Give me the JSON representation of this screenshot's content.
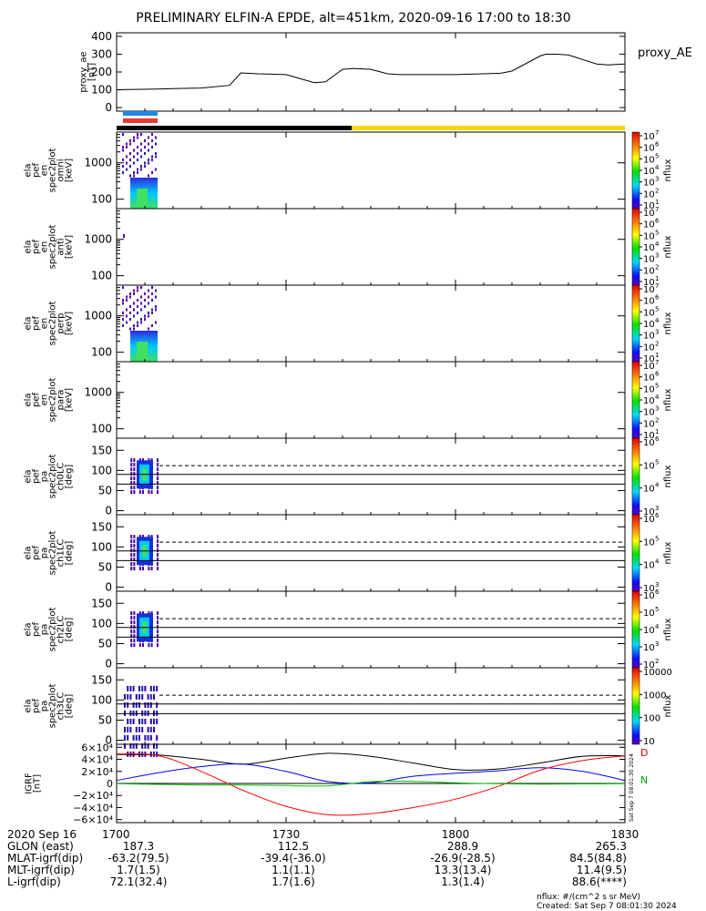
{
  "title": "PRELIMINARY ELFIN-A EPDE, alt=451km, 2020-09-16 17:00 to 18:30",
  "colors": {
    "bar_blue": "#1e88e5",
    "bar_red": "#e53935",
    "bar_black": "#000000",
    "bar_yellow": "#f5d90a",
    "ae_line": "#000000",
    "igrf_x": "#000000",
    "igrf_y": "#0000ff",
    "igrf_z": "#ff0000",
    "igrf_t": "#00c000"
  },
  "top_panel": {
    "ylabel_lines": [
      "proxy_ae",
      "[nT]"
    ],
    "legend": "proxy_AE",
    "yticks": [
      "0",
      "100",
      "200",
      "300",
      "400"
    ]
  },
  "spec_panels": [
    {
      "ylabel_lines": [
        "ela",
        "pef",
        "en",
        "spec2plot",
        "omni",
        "[keV]"
      ],
      "yticks": [
        "100",
        "1000"
      ],
      "cbar_ticks": [
        "10",
        "10",
        "10",
        "10",
        "10",
        "10",
        "10"
      ],
      "cbar_exps": [
        "1",
        "2",
        "3",
        "4",
        "5",
        "6",
        "7"
      ],
      "cbar_label": "nflux"
    },
    {
      "ylabel_lines": [
        "ela",
        "pef",
        "en",
        "spec2plot",
        "anti",
        "[keV]"
      ],
      "yticks": [
        "100",
        "1000"
      ],
      "cbar_ticks": [
        "10",
        "10",
        "10",
        "10",
        "10",
        "10",
        "10"
      ],
      "cbar_exps": [
        "1",
        "2",
        "3",
        "4",
        "5",
        "6",
        "7"
      ],
      "cbar_label": "nflux"
    },
    {
      "ylabel_lines": [
        "ela",
        "pef",
        "en",
        "spec2plot",
        "perp",
        "[keV]"
      ],
      "yticks": [
        "100",
        "1000"
      ],
      "cbar_ticks": [
        "10",
        "10",
        "10",
        "10",
        "10",
        "10",
        "10"
      ],
      "cbar_exps": [
        "1",
        "2",
        "3",
        "4",
        "5",
        "6",
        "7"
      ],
      "cbar_label": "nflux"
    },
    {
      "ylabel_lines": [
        "ela",
        "pef",
        "en",
        "spec2plot",
        "para",
        "[keV]"
      ],
      "yticks": [
        "100",
        "1000"
      ],
      "cbar_ticks": [
        "10",
        "10",
        "10",
        "10",
        "10",
        "10",
        "10"
      ],
      "cbar_exps": [
        "1",
        "2",
        "3",
        "4",
        "5",
        "6",
        "7"
      ],
      "cbar_label": "nflux"
    }
  ],
  "pa_panels": [
    {
      "ylabel_lines": [
        "ela",
        "pef",
        "pa",
        "spec2plot",
        "ch0LC",
        "[deg]"
      ],
      "yticks": [
        "0",
        "50",
        "100",
        "150"
      ],
      "cbar_ticks": [
        "10",
        "10",
        "10",
        "10"
      ],
      "cbar_exps": [
        "3",
        "4",
        "5",
        "6"
      ],
      "cbar_label": "nflux"
    },
    {
      "ylabel_lines": [
        "ela",
        "pef",
        "pa",
        "spec2plot",
        "ch1LC",
        "[deg]"
      ],
      "yticks": [
        "0",
        "50",
        "100",
        "150"
      ],
      "cbar_ticks": [
        "10",
        "10",
        "10",
        "10"
      ],
      "cbar_exps": [
        "3",
        "4",
        "5",
        "6"
      ],
      "cbar_label": "nflux"
    },
    {
      "ylabel_lines": [
        "ela",
        "pef",
        "pa",
        "spec2plot",
        "ch2LC",
        "[deg]"
      ],
      "yticks": [
        "0",
        "50",
        "100",
        "150"
      ],
      "cbar_ticks": [
        "10",
        "10",
        "10",
        "10",
        "10"
      ],
      "cbar_exps": [
        "2",
        "3",
        "4",
        "5",
        "6"
      ],
      "cbar_label": "nflux"
    },
    {
      "ylabel_lines": [
        "ela",
        "pef",
        "pa",
        "spec2plot",
        "ch3LC",
        "[deg]"
      ],
      "yticks": [
        "0",
        "50",
        "100",
        "150"
      ],
      "cbar_ticks": [
        "10",
        "100",
        "1000",
        "10000"
      ],
      "cbar_exps": [
        "",
        "",
        "",
        ""
      ],
      "cbar_label": "nflux"
    }
  ],
  "igrf_panel": {
    "ylabel_lines": [
      "IGRF",
      "[nT]"
    ],
    "yticks": [
      "−6×10⁴",
      "−4×10⁴",
      "−2×10⁴",
      "0",
      "2×10⁴",
      "4×10⁴",
      "6×10⁴"
    ],
    "side_letters": [
      "D",
      "N"
    ],
    "side_stamp": "Sat Sep  7 08:01:30 2024"
  },
  "chart_data": {
    "type": "line",
    "x_unit": "minutes after 2020-09-16 17:00",
    "xlim": [
      0,
      90
    ],
    "proxy_ae": {
      "ylim": [
        -20,
        420
      ],
      "x": [
        0,
        2,
        5,
        8,
        10,
        15,
        20,
        22,
        25,
        30,
        35,
        37,
        40,
        42,
        45,
        48,
        50,
        55,
        60,
        65,
        68,
        70,
        75,
        76,
        78,
        80,
        85,
        87,
        90
      ],
      "y": [
        100,
        101,
        103,
        105,
        107,
        110,
        125,
        195,
        190,
        185,
        140,
        145,
        215,
        220,
        215,
        190,
        185,
        185,
        185,
        190,
        193,
        205,
        290,
        300,
        300,
        295,
        245,
        240,
        245
      ]
    },
    "igrf": {
      "ylim": [
        -65000,
        65000
      ],
      "x": [
        0,
        7.5,
        15,
        22.5,
        30,
        37.5,
        45,
        52.5,
        60,
        67.5,
        75,
        82.5,
        90
      ],
      "series": [
        {
          "key": "bx",
          "values": [
            48000,
            47000,
            40000,
            32000,
            42000,
            50000,
            45000,
            34000,
            23000,
            24000,
            34000,
            45000,
            46000
          ]
        },
        {
          "key": "by",
          "values": [
            5000,
            18000,
            28000,
            32000,
            20000,
            3000,
            1000,
            12000,
            17000,
            21000,
            26000,
            20000,
            5000
          ]
        },
        {
          "key": "bz",
          "values": [
            49000,
            46000,
            20000,
            -12000,
            -38000,
            -52000,
            -50000,
            -40000,
            -26000,
            -5000,
            22000,
            38000,
            46000
          ]
        },
        {
          "key": "bt",
          "values": [
            -500,
            -1500,
            -2500,
            -2500,
            -3500,
            -4000,
            3000,
            3500,
            1000,
            -500,
            -1000,
            -800,
            -500
          ]
        }
      ]
    },
    "pa_dashed_line": 112,
    "pa_solid_lines": [
      66,
      90
    ]
  },
  "orbit": {
    "labels": [
      "2020 Sep 16",
      "GLON (east)",
      "MLAT-igrf(dip)",
      "MLT-igrf(dip)",
      "L-igrf(dip)"
    ],
    "columns": [
      {
        "tick": "1700",
        "vals": [
          "187.3",
          "-63.2(79.5)",
          "1.7(1.5)",
          "72.1(32.4)"
        ]
      },
      {
        "tick": "1730",
        "vals": [
          "112.5",
          "-39.4(-36.0)",
          "1.1(1.1)",
          "1.7(1.6)"
        ]
      },
      {
        "tick": "1800",
        "vals": [
          "288.9",
          "-26.9(-28.5)",
          "13.3(13.4)",
          "1.3(1.4)"
        ]
      },
      {
        "tick": "1830",
        "vals": [
          "265.3",
          "84.5(84.8)",
          "11.4(9.5)",
          "88.6(****)"
        ]
      }
    ]
  },
  "footer": {
    "units": "nflux: #/(cm^2 s sr MeV)",
    "created": "Created: Sat Sep  7 08:01:30 2024"
  }
}
